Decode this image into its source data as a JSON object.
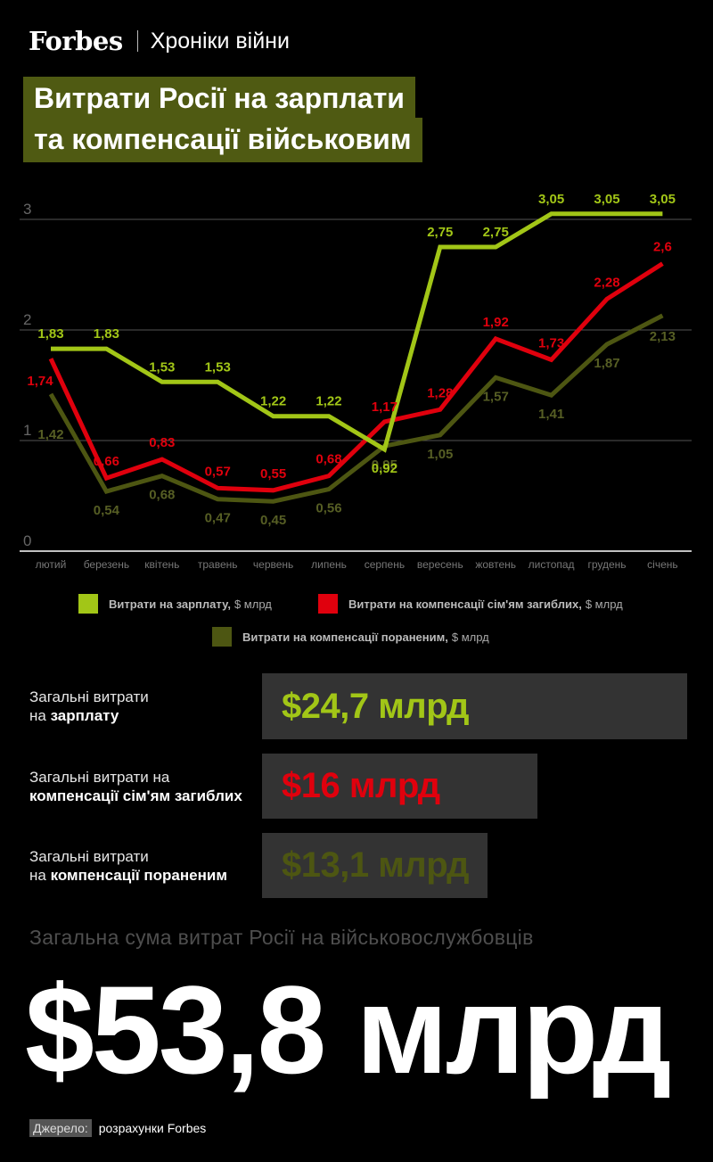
{
  "header": {
    "brand": "Forbes",
    "section": "Хроніки війни",
    "title_line1": "Витрати Росії на зарплати",
    "title_line2": "та компенсації військовим"
  },
  "colors": {
    "salary": "#a2c617",
    "compensation_dead": "#e0000d",
    "compensation_wounded": "#4d5612",
    "background": "#000000",
    "title_bg": "#4f5a12",
    "stat_box": "#333333"
  },
  "chart_data": {
    "type": "line",
    "categories": [
      "лютий",
      "березень",
      "квітень",
      "травень",
      "червень",
      "липень",
      "серпень",
      "вересень",
      "жовтень",
      "листопад",
      "грудень",
      "січень"
    ],
    "y_ticks": [
      "0",
      "1",
      "2",
      "3"
    ],
    "ylim": [
      0,
      3.05
    ],
    "grid": true,
    "series": [
      {
        "key": "salary",
        "name": "Витрати на зарплату",
        "unit": ", $ млрд",
        "values": [
          1.83,
          1.83,
          1.53,
          1.53,
          1.22,
          1.22,
          0.92,
          2.75,
          2.75,
          3.05,
          3.05,
          3.05
        ],
        "labels": [
          "1,83",
          "1,83",
          "1,53",
          "1,53",
          "1,22",
          "1,22",
          "0,92",
          "2,75",
          "2,75",
          "3,05",
          "3,05",
          "3,05"
        ]
      },
      {
        "key": "compensation_dead",
        "name": "Витрати на компенсації сім'ям загиблих",
        "unit": ", $ млрд",
        "values": [
          1.74,
          0.66,
          0.83,
          0.57,
          0.55,
          0.68,
          1.17,
          1.28,
          1.92,
          1.73,
          2.28,
          2.6
        ],
        "labels": [
          "1,74",
          "0,66",
          "0,83",
          "0,57",
          "0,55",
          "0,68",
          "1,17",
          "1,28",
          "1,92",
          "1,73",
          "2,28",
          "2,6"
        ]
      },
      {
        "key": "compensation_wounded",
        "name": "Витрати на компенсації пораненим",
        "unit": ", $ млрд",
        "values": [
          1.42,
          0.54,
          0.68,
          0.47,
          0.45,
          0.56,
          0.95,
          1.05,
          1.57,
          1.41,
          1.87,
          2.13
        ],
        "labels": [
          "1,42",
          "0,54",
          "0,68",
          "0,47",
          "0,45",
          "0,56",
          "0,95",
          "1,05",
          "1,57",
          "1,41",
          "1,87",
          "2,13"
        ]
      }
    ]
  },
  "legend": {
    "salary_name": "Витрати на зарплату,",
    "salary_unit": "$ млрд",
    "dead_name": "Витрати на компенсації сім'ям загиблих,",
    "dead_unit": "$ млрд",
    "wounded_name": "Витрати на компенсації пораненим,",
    "wounded_unit": "$ млрд"
  },
  "stats": {
    "salary": {
      "label_line1": "Загальні витрати",
      "label_prefix": "на ",
      "label_bold": "зарплату",
      "value": "$24,7 млрд"
    },
    "dead": {
      "label_line1": "Загальні витрати на",
      "label_bold": "компенсації сім'ям загиблих",
      "value": "$16 млрд"
    },
    "wounded": {
      "label_line1": "Загальні витрати",
      "label_prefix": "на ",
      "label_bold": "компенсації пораненим",
      "value": "$13,1 млрд"
    }
  },
  "total": {
    "caption": "Загальна сума витрат Росії на військовослужбовців",
    "value": "$53,8 млрд"
  },
  "source": {
    "label": "Джерело:",
    "text": "розрахунки Forbes"
  }
}
